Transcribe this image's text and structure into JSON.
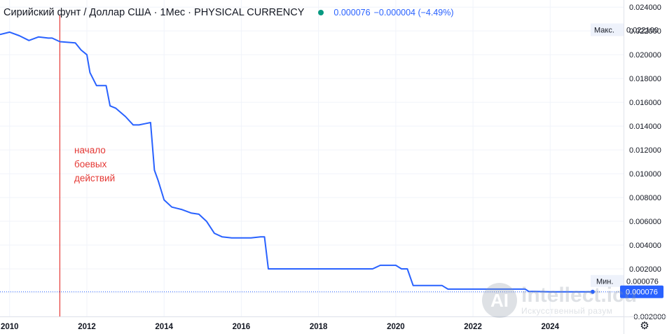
{
  "header": {
    "title": "Сирийский фунт / Доллар США · 1Мес · PHYSICAL CURRENCY",
    "last_value": "0.000076",
    "change": "−0.000004 (−4.49%)",
    "status_icon": "market-open-dot",
    "status_color": "#089981"
  },
  "annotation": {
    "text_lines": [
      "начало",
      "боевых",
      "действий"
    ],
    "color": "#e53935"
  },
  "price_labels": {
    "max": {
      "label": "Макс.",
      "value": "0.022100"
    },
    "min": {
      "label": "Мин.",
      "value": "0.000076"
    },
    "last": {
      "value": "0.000076"
    }
  },
  "watermark": {
    "logo_letter": "AI",
    "text": "intellect.icu",
    "subtext": "Искусственный разум"
  },
  "settings_icon": "gear-icon",
  "colors": {
    "line": "#2962ff",
    "annotation": "#e53935",
    "grid": "#f0f3fa",
    "axis_text": "#131722"
  },
  "chart_data": {
    "type": "line",
    "title": "Сирийский фунт / Доллар США · 1Мес · PHYSICAL CURRENCY",
    "xlabel": "",
    "ylabel": "",
    "x_ticks": [
      "2010",
      "2012",
      "2014",
      "2016",
      "2018",
      "2020",
      "2022",
      "2024"
    ],
    "y_ticks": [
      "0.024000",
      "0.022000",
      "0.020000",
      "0.018000",
      "0.016000",
      "0.014000",
      "0.012000",
      "0.010000",
      "0.008000",
      "0.006000",
      "0.004000",
      "0.002000",
      "0.000000",
      "−0.002000"
    ],
    "xlim": [
      2009.75,
      2025.9
    ],
    "ylim": [
      -0.002,
      0.0246
    ],
    "grid": true,
    "vertical_marker_x": 2011.3,
    "series": [
      {
        "x": [
          2009.75,
          2010.0,
          2010.25,
          2010.5,
          2010.75,
          2011.0,
          2011.1,
          2011.3,
          2011.7,
          2011.85,
          2012.0,
          2012.08,
          2012.25,
          2012.5,
          2012.6,
          2012.75,
          2013.0,
          2013.2,
          2013.35,
          2013.5,
          2013.65,
          2013.75,
          2013.85,
          2014.0,
          2014.2,
          2014.45,
          2014.7,
          2014.9,
          2015.1,
          2015.3,
          2015.5,
          2015.75,
          2016.0,
          2016.25,
          2016.5,
          2016.6,
          2016.7,
          2017.0,
          2017.5,
          2018.0,
          2018.5,
          2019.0,
          2019.4,
          2019.6,
          2020.0,
          2020.15,
          2020.3,
          2020.45,
          2020.7,
          2021.0,
          2021.2,
          2021.35,
          2021.6,
          2022.0,
          2022.5,
          2023.0,
          2023.35,
          2023.45,
          2023.6,
          2024.0,
          2024.5,
          2024.9,
          2025.1
        ],
        "y": [
          0.0217,
          0.0219,
          0.0216,
          0.0212,
          0.0215,
          0.0214,
          0.0214,
          0.0211,
          0.021,
          0.0204,
          0.02,
          0.0185,
          0.0174,
          0.0174,
          0.0157,
          0.0155,
          0.0148,
          0.0141,
          0.0141,
          0.0142,
          0.0143,
          0.0103,
          0.0094,
          0.0078,
          0.0072,
          0.007,
          0.0067,
          0.0066,
          0.006,
          0.005,
          0.0047,
          0.0046,
          0.0046,
          0.0046,
          0.0047,
          0.0047,
          0.002,
          0.002,
          0.002,
          0.002,
          0.002,
          0.002,
          0.002,
          0.0023,
          0.0023,
          0.002,
          0.002,
          0.0006,
          0.0006,
          0.0006,
          0.0006,
          0.0003,
          0.0003,
          0.0003,
          0.0003,
          0.0003,
          0.0003,
          0.0001,
          0.0001,
          7.6e-05,
          7.6e-05,
          7.6e-05,
          7.6e-05
        ]
      }
    ]
  }
}
